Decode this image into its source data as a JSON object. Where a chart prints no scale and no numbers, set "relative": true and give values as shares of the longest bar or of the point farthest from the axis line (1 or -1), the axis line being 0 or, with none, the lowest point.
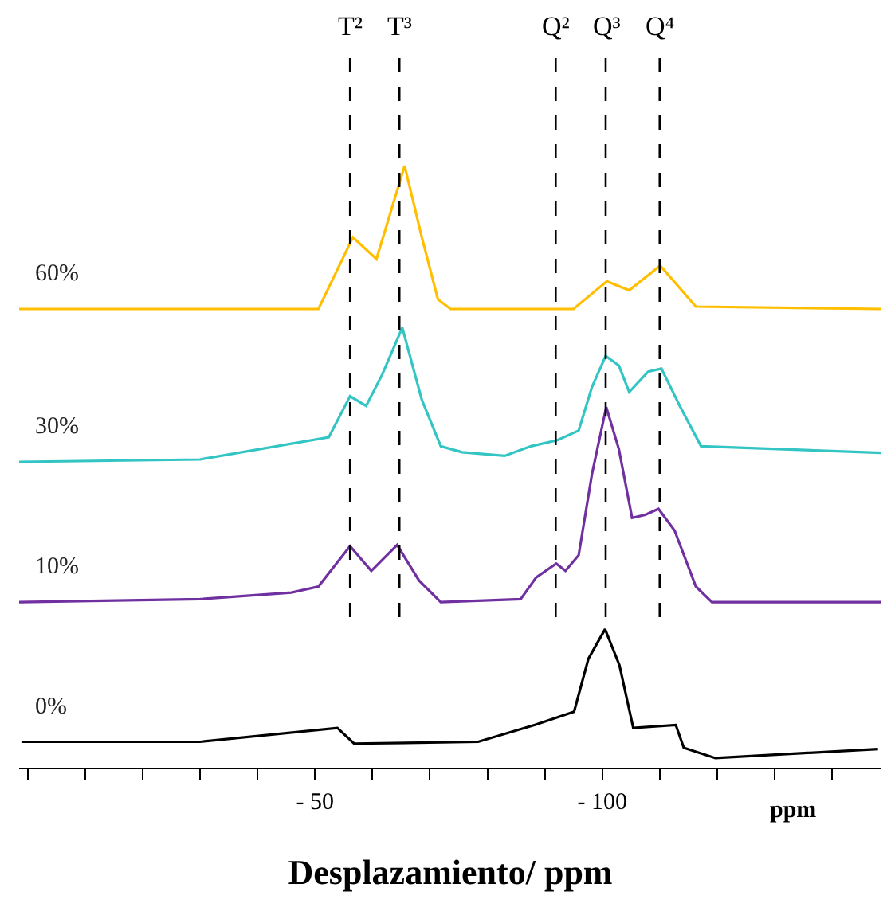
{
  "chart_data": {
    "type": "line",
    "relative": true,
    "xlabel": "Desplazamiento/ ppm",
    "xlim": [
      1.5,
      -148.6
    ],
    "xticks": [
      {
        "value": 0,
        "label": null
      },
      {
        "value": -10,
        "label": null
      },
      {
        "value": -20,
        "label": null
      },
      {
        "value": -30,
        "label": null
      },
      {
        "value": -40,
        "label": null
      },
      {
        "value": -50,
        "label": "- 50"
      },
      {
        "value": -60,
        "label": null
      },
      {
        "value": -70,
        "label": null
      },
      {
        "value": -80,
        "label": null
      },
      {
        "value": -90,
        "label": null
      },
      {
        "value": -100,
        "label": "- 100"
      },
      {
        "value": -110,
        "label": null
      },
      {
        "value": -120,
        "label": null
      },
      {
        "value": -130,
        "label": null
      },
      {
        "value": -140,
        "label": null
      }
    ],
    "series": [
      {
        "name": "60%",
        "color": "#ffbf00",
        "x": [
          1.5,
          -30,
          -50.6,
          -56.6,
          -60.7,
          -65.6,
          -68.6,
          -71.4,
          -73.6,
          -95,
          -100.8,
          -104.7,
          -110.1,
          -116.3,
          -148.6
        ],
        "values": [
          0.762,
          0.762,
          0.762,
          0.881,
          0.845,
          1.0,
          0.881,
          0.778,
          0.762,
          0.762,
          0.808,
          0.793,
          0.834,
          0.766,
          0.762
        ]
      },
      {
        "name": "30%",
        "color": "#33c4c4",
        "x": [
          1.5,
          -30,
          -52.4,
          -56.1,
          -58.9,
          -61.7,
          -65.2,
          -68.6,
          -71.9,
          -75.6,
          -83,
          -87.6,
          -92.2,
          -95.9,
          -98.2,
          -100.6,
          -102.9,
          -104.7,
          -108,
          -110.3,
          -113.5,
          -117.2,
          -148.6
        ],
        "values": [
          0.508,
          0.512,
          0.549,
          0.617,
          0.601,
          0.653,
          0.731,
          0.611,
          0.534,
          0.524,
          0.518,
          0.534,
          0.544,
          0.56,
          0.632,
          0.684,
          0.668,
          0.624,
          0.658,
          0.663,
          0.601,
          0.534,
          0.523
        ]
      },
      {
        "name": "10%",
        "color": "#7030a0",
        "x": [
          1.5,
          -30,
          -45.9,
          -50.6,
          -56.1,
          -59.8,
          -64.3,
          -68.1,
          -71.9,
          -85.8,
          -88.5,
          -92,
          -93.6,
          -95.9,
          -98.2,
          -100.7,
          -102.9,
          -105.2,
          -107.5,
          -109.8,
          -112.6,
          -116.3,
          -119.1,
          -148.6
        ],
        "values": [
          0.275,
          0.28,
          0.291,
          0.301,
          0.368,
          0.327,
          0.37,
          0.311,
          0.275,
          0.28,
          0.316,
          0.339,
          0.327,
          0.353,
          0.487,
          0.599,
          0.529,
          0.415,
          0.42,
          0.43,
          0.394,
          0.301,
          0.275,
          0.275
        ]
      },
      {
        "name": "0%",
        "color": "#000000",
        "x": [
          1.1,
          -30,
          -53.9,
          -56.8,
          -78.4,
          -88.3,
          -95.1,
          -97.6,
          -100.5,
          -103,
          -105.4,
          -112.8,
          -114.2,
          -119.7,
          -148
        ],
        "values": [
          0.043,
          0.043,
          0.066,
          0.04,
          0.043,
          0.071,
          0.093,
          0.181,
          0.23,
          0.17,
          0.066,
          0.071,
          0.033,
          0.016,
          0.031
        ]
      }
    ],
    "ref_lines": [
      {
        "axis": "x",
        "value": -56.1,
        "label": "T²",
        "line_style": "dashed",
        "color": "#000000"
      },
      {
        "axis": "x",
        "value": -64.7,
        "label": "T³",
        "line_style": "dashed",
        "color": "#000000"
      },
      {
        "axis": "x",
        "value": -91.9,
        "label": "Q²",
        "line_style": "dashed",
        "color": "#000000"
      },
      {
        "axis": "x",
        "value": -100.6,
        "label": "Q³",
        "line_style": "dashed",
        "color": "#000000"
      },
      {
        "axis": "x",
        "value": -110,
        "label": "Q⁴",
        "line_style": "dashed",
        "color": "#000000"
      }
    ],
    "annotations": [
      "ppm"
    ]
  }
}
